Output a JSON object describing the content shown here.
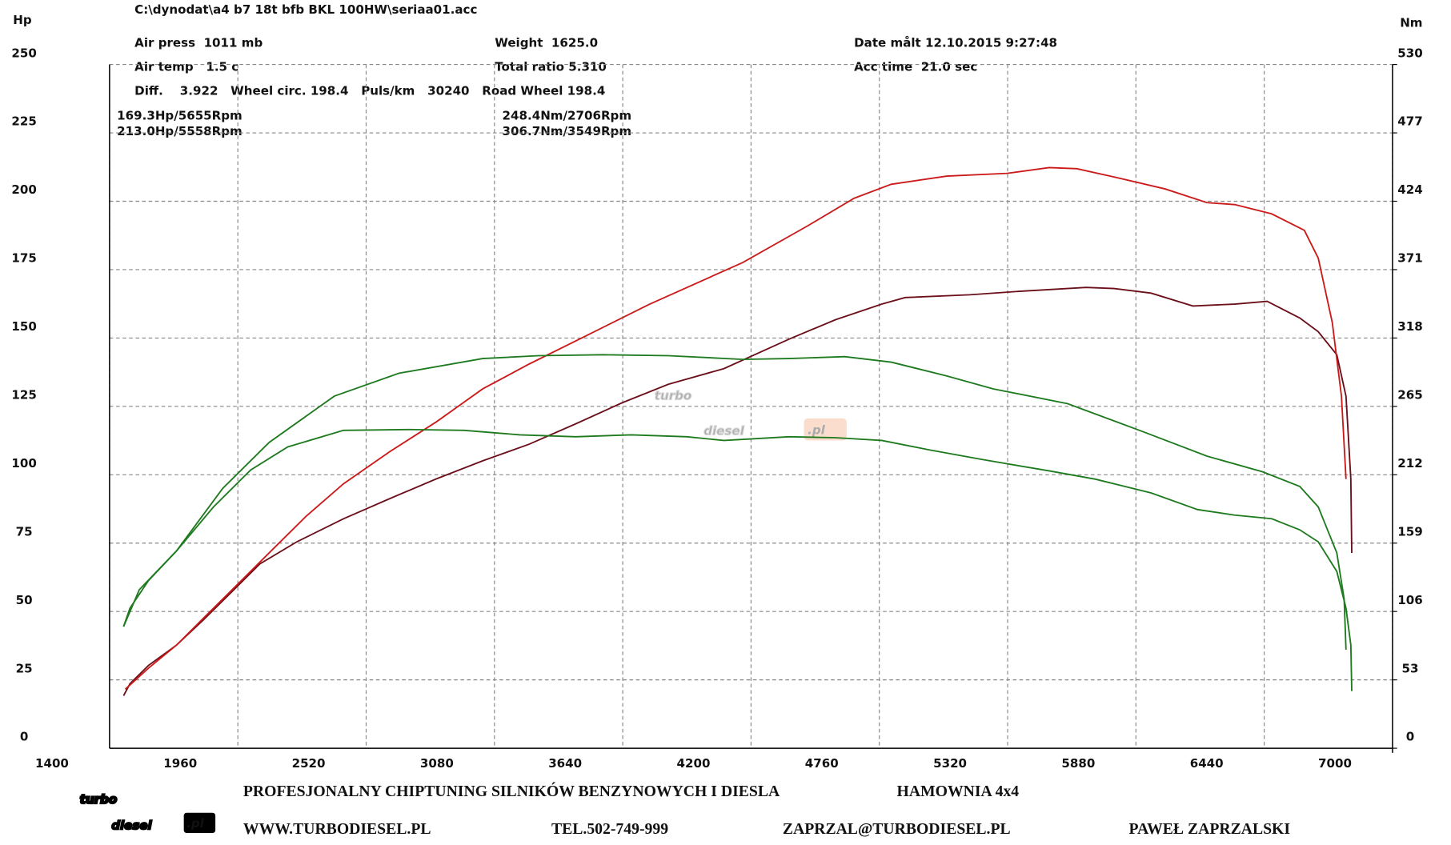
{
  "chart_data": {
    "type": "line",
    "file_path": "C:\\dynodat\\a4 b7 18t bfb BKL 100HW\\seriaa01.acc",
    "info": [
      "Air press  1011 mb",
      "Weight  1625.0",
      "Date målt 12.10.2015 9:27:48",
      "Air temp   1.5 c",
      "Total ratio 5.310",
      "Acc time  21.0 sec",
      "Diff.    3.922   Wheel circ. 198.4   Puls/km   30240   Road Wheel 198.4"
    ],
    "annotations": [
      {
        "text": "169.3Hp/5655Rpm",
        "color": "#7a1020"
      },
      {
        "text": "213.0Hp/5558Rpm",
        "color": "#d41c1c"
      },
      {
        "text": "248.4Nm/2706Rpm",
        "color": "#1e8a1e"
      },
      {
        "text": "306.7Nm/3549Rpm",
        "color": "#1e8a1e"
      }
    ],
    "y_label": "Hp",
    "y2_label": "Nm",
    "xlim": [
      1400,
      7000
    ],
    "xticks": [
      1400,
      1960,
      2520,
      3080,
      3640,
      4200,
      4760,
      5320,
      5880,
      6440,
      7000
    ],
    "ylim": [
      0,
      250
    ],
    "yticks": [
      0,
      25,
      50,
      75,
      100,
      125,
      150,
      175,
      200,
      225,
      250
    ],
    "y2lim": [
      0,
      530
    ],
    "y2ticks": [
      0,
      53,
      106,
      159,
      212,
      265,
      318,
      371,
      424,
      477,
      530
    ],
    "grid": true,
    "series": [
      {
        "color": "#6b0f1a",
        "x": [
          1461,
          1489,
          1570,
          1692,
          1813,
          1935,
          2056,
          2218,
          2421,
          2624,
          2826,
          3029,
          3232,
          3434,
          3637,
          3839,
          4082,
          4366,
          4569,
          4771,
          4873,
          5156,
          5379,
          5663,
          5784,
          5946,
          6129,
          6311,
          6453,
          6595,
          6676,
          6757,
          6797,
          6818,
          6822
        ],
        "values": [
          19.2,
          23.6,
          30.3,
          37.7,
          47.2,
          57.3,
          67.4,
          75.5,
          83.9,
          91.3,
          98.5,
          105.1,
          111.2,
          118.6,
          126.3,
          133.1,
          138.8,
          149.6,
          156.7,
          162.4,
          164.8,
          165.8,
          167.1,
          168.5,
          168.1,
          166.4,
          161.7,
          162.4,
          163.4,
          157.3,
          152.3,
          143.9,
          128.7,
          98.4,
          71.4
        ]
      },
      {
        "color": "#cc1a1a",
        "x": [
          1469,
          1570,
          1692,
          1813,
          1975,
          2137,
          2259,
          2421,
          2624,
          2826,
          3029,
          3232,
          3434,
          3758,
          4164,
          4447,
          4650,
          4812,
          5055,
          5318,
          5501,
          5622,
          5784,
          6007,
          6190,
          6311,
          6473,
          6615,
          6676,
          6737,
          6777,
          6797
        ],
        "values": [
          21.6,
          29.3,
          37.7,
          47.8,
          61.3,
          74.8,
          84.9,
          96.7,
          108.5,
          119.3,
          131.4,
          140.5,
          148.9,
          162.4,
          177.6,
          191.0,
          201.1,
          206.2,
          209.2,
          210.2,
          212.3,
          211.9,
          208.9,
          204.5,
          199.5,
          198.8,
          195.4,
          189.4,
          179.2,
          155.7,
          128.7,
          98.4
        ]
      },
      {
        "color": "#1e7a1e",
        "axis": "y2",
        "x": [
          1461,
          1489,
          1570,
          1692,
          1854,
          2016,
          2178,
          2421,
          2705,
          2948,
          3191,
          3434,
          3677,
          3920,
          4082,
          4366,
          4569,
          4771,
          4974,
          5217,
          5501,
          5703,
          5946,
          6149,
          6311,
          6473,
          6595,
          6676,
          6757,
          6797,
          6818,
          6822
        ],
        "values": [
          94.3,
          108.6,
          130.0,
          152.9,
          187.1,
          215.7,
          233.6,
          246.4,
          247.1,
          246.4,
          242.9,
          241.4,
          242.9,
          241.4,
          238.6,
          241.4,
          240.7,
          238.6,
          231.4,
          223.6,
          215.0,
          208.6,
          197.9,
          185.0,
          180.7,
          177.9,
          169.3,
          160.0,
          137.1,
          108.6,
          80.0,
          44.3
        ]
      },
      {
        "color": "#1e7a1e",
        "axis": "y2",
        "x": [
          1461,
          1530,
          1692,
          1894,
          2097,
          2381,
          2664,
          3029,
          3272,
          3556,
          3839,
          4164,
          4366,
          4609,
          4812,
          5055,
          5257,
          5582,
          5906,
          6190,
          6433,
          6595,
          6676,
          6757,
          6789,
          6797
        ],
        "values": [
          94.3,
          122.9,
          152.9,
          201.4,
          237.1,
          272.9,
          290.7,
          302.1,
          304.3,
          305.0,
          304.3,
          301.4,
          302.1,
          303.6,
          299.3,
          288.6,
          278.6,
          267.1,
          245.7,
          226.4,
          214.3,
          202.9,
          187.1,
          151.4,
          115.7,
          76.4
        ]
      }
    ],
    "watermark": {
      "top": "turbo",
      "bottom": "diesel",
      "suffix": ".pl"
    },
    "footer": {
      "logo_top": "turbo",
      "logo_bottom": "diesel",
      "logo_suffix": ".pl",
      "slogan": "PROFESJONALNY CHIPTUNING SILNIKÓW BENZYNOWYCH I DIESLA",
      "service": "HAMOWNIA 4x4",
      "website": "WWW.TURBODIESEL.PL",
      "phone": "TEL.502-749-999",
      "email": "ZAPRZAL@TURBODIESEL.PL",
      "owner": "PAWEŁ ZAPRZALSKI"
    }
  }
}
